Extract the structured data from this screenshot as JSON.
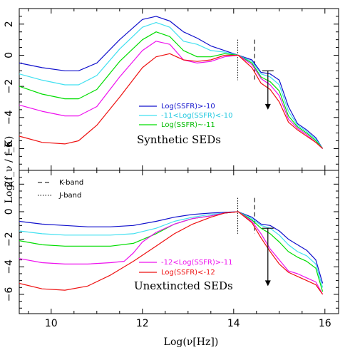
{
  "chart_data": {
    "type": "line",
    "xlabel": "Log(ν[Hz])",
    "ylabel": "Log(f_ν / f_K)",
    "xlim": [
      9.3,
      16.3
    ],
    "x_ticks": [
      "10",
      "12",
      "14",
      "16"
    ],
    "band_lines": {
      "J": 14.09,
      "K": 14.46
    },
    "band_legend": [
      {
        "name": "K-band",
        "style": "dashed"
      },
      {
        "name": "J-band",
        "style": "dotted"
      }
    ],
    "panels": [
      {
        "title": "Synthetic SEDs",
        "ylim": [
          -7.4,
          3.0
        ],
        "y_ticks": [
          "2",
          "0",
          "−2",
          "−4",
          "−6"
        ],
        "arrow": {
          "x": 14.75,
          "y_from": -1.0,
          "y_to": -3.5
        },
        "legend_labels": [
          "Log(SSFR)>-10",
          "-11<Log(SSFR)<-10",
          "Log(SSFR)~-11"
        ],
        "series": [
          {
            "name": "Log(SSFR)>-10",
            "color": "#1010cc",
            "x": [
              9.3,
              9.8,
              10.3,
              10.6,
              11.0,
              11.5,
              12.0,
              12.3,
              12.6,
              12.9,
              13.2,
              13.5,
              13.8,
              14.1,
              14.4,
              14.6,
              14.8,
              15.0,
              15.2,
              15.4,
              15.6,
              15.8,
              15.95
            ],
            "y": [
              -0.5,
              -0.8,
              -1.0,
              -1.0,
              -0.5,
              1.0,
              2.3,
              2.5,
              2.2,
              1.5,
              1.1,
              0.6,
              0.3,
              0.0,
              -0.3,
              -1.1,
              -1.2,
              -1.6,
              -3.3,
              -4.4,
              -4.8,
              -5.3,
              -6.0
            ]
          },
          {
            "name": "-11<Log(SSFR)<-10",
            "color": "#40e0f0",
            "x": [
              9.3,
              9.8,
              10.3,
              10.6,
              11.0,
              11.5,
              12.0,
              12.3,
              12.6,
              12.9,
              13.2,
              13.5,
              13.8,
              14.1,
              14.4,
              14.6,
              14.8,
              15.0,
              15.2,
              15.4,
              15.6,
              15.8,
              15.95
            ],
            "y": [
              -1.2,
              -1.6,
              -1.9,
              -1.9,
              -1.3,
              0.4,
              1.8,
              2.1,
              1.8,
              0.9,
              0.7,
              0.3,
              0.2,
              0.0,
              -0.4,
              -1.2,
              -1.4,
              -1.9,
              -3.6,
              -4.5,
              -4.9,
              -5.4,
              -6.0
            ]
          },
          {
            "name": "Log(SSFR)~-11",
            "color": "#00dd00",
            "x": [
              9.3,
              9.8,
              10.3,
              10.6,
              11.0,
              11.5,
              12.0,
              12.3,
              12.6,
              12.9,
              13.2,
              13.5,
              13.8,
              14.1,
              14.4,
              14.6,
              14.8,
              15.0,
              15.2,
              15.4,
              15.6,
              15.8,
              15.95
            ],
            "y": [
              -2.0,
              -2.5,
              -2.8,
              -2.8,
              -2.2,
              -0.4,
              1.0,
              1.5,
              1.2,
              0.3,
              -0.1,
              -0.1,
              0.1,
              0.0,
              -0.5,
              -1.4,
              -1.7,
              -2.3,
              -3.9,
              -4.6,
              -5.0,
              -5.5,
              -6.0
            ]
          },
          {
            "name": "",
            "color": "#ee10ee",
            "x": [
              9.3,
              9.8,
              10.3,
              10.6,
              11.0,
              11.5,
              12.0,
              12.3,
              12.6,
              12.9,
              13.2,
              13.5,
              13.8,
              14.1,
              14.4,
              14.6,
              14.8,
              15.0,
              15.2,
              15.4,
              15.6,
              15.8,
              15.95
            ],
            "y": [
              -3.2,
              -3.6,
              -3.9,
              -3.9,
              -3.3,
              -1.4,
              0.3,
              0.9,
              0.7,
              -0.3,
              -0.5,
              -0.4,
              -0.1,
              0.0,
              -0.6,
              -1.5,
              -1.9,
              -2.6,
              -4.1,
              -4.7,
              -5.1,
              -5.6,
              -6.0
            ]
          },
          {
            "name": "",
            "color": "#ee1010",
            "x": [
              9.3,
              9.8,
              10.3,
              10.6,
              11.0,
              11.5,
              12.0,
              12.3,
              12.6,
              12.9,
              13.2,
              13.5,
              13.8,
              14.1,
              14.4,
              14.6,
              14.8,
              15.0,
              15.2,
              15.4,
              15.6,
              15.8,
              15.95
            ],
            "y": [
              -5.2,
              -5.6,
              -5.7,
              -5.5,
              -4.5,
              -2.7,
              -0.8,
              -0.1,
              0.1,
              -0.3,
              -0.4,
              -0.3,
              0.0,
              0.0,
              -0.8,
              -1.8,
              -2.2,
              -3.0,
              -4.3,
              -4.8,
              -5.2,
              -5.6,
              -6.0
            ]
          }
        ]
      },
      {
        "title": "Unextincted SEDs",
        "ylim": [
          -7.4,
          3.0
        ],
        "y_ticks": [
          "2",
          "0",
          "−2",
          "−4",
          "−6"
        ],
        "arrow": {
          "x": 14.75,
          "y_from": -1.2,
          "y_to": -5.4
        },
        "legend_labels": [
          "-12<Log(SSFR)>-11",
          "Log(SSFR)<-12"
        ],
        "series": [
          {
            "name": "",
            "color": "#1010cc",
            "x": [
              9.3,
              9.8,
              10.3,
              10.8,
              11.3,
              11.8,
              12.3,
              12.7,
              13.1,
              13.5,
              13.8,
              14.1,
              14.4,
              14.6,
              14.8,
              15.0,
              15.2,
              15.4,
              15.6,
              15.8,
              15.95
            ],
            "y": [
              -0.7,
              -0.9,
              -1.0,
              -1.1,
              -1.1,
              -1.0,
              -0.7,
              -0.4,
              -0.2,
              -0.1,
              -0.05,
              0.0,
              -0.4,
              -0.9,
              -1.0,
              -1.4,
              -2.0,
              -2.4,
              -2.8,
              -3.5,
              -5.2
            ]
          },
          {
            "name": "",
            "color": "#40e0f0",
            "x": [
              9.3,
              9.8,
              10.3,
              10.8,
              11.3,
              11.8,
              12.3,
              12.7,
              13.1,
              13.5,
              13.8,
              14.1,
              14.4,
              14.6,
              14.8,
              15.0,
              15.2,
              15.4,
              15.6,
              15.8,
              15.95
            ],
            "y": [
              -1.4,
              -1.6,
              -1.7,
              -1.7,
              -1.7,
              -1.6,
              -1.2,
              -0.7,
              -0.4,
              -0.2,
              -0.1,
              0.0,
              -0.5,
              -1.0,
              -1.2,
              -1.7,
              -2.4,
              -2.9,
              -3.2,
              -3.8,
              -5.5
            ]
          },
          {
            "name": "",
            "color": "#00dd00",
            "x": [
              9.3,
              9.8,
              10.3,
              10.8,
              11.3,
              11.8,
              12.3,
              12.7,
              13.1,
              13.5,
              13.8,
              14.1,
              14.4,
              14.6,
              14.8,
              15.0,
              15.2,
              15.4,
              15.6,
              15.8,
              15.95
            ],
            "y": [
              -2.1,
              -2.4,
              -2.5,
              -2.5,
              -2.5,
              -2.3,
              -1.6,
              -0.9,
              -0.5,
              -0.3,
              -0.1,
              0.0,
              -0.6,
              -1.2,
              -1.6,
              -2.2,
              -2.9,
              -3.3,
              -3.6,
              -4.1,
              -5.8
            ]
          },
          {
            "name": "-12<Log(SSFR)>-11",
            "color": "#ee10ee",
            "x": [
              9.3,
              9.8,
              10.3,
              10.8,
              11.3,
              11.6,
              11.8,
              12.0,
              12.3,
              12.7,
              13.1,
              13.5,
              13.8,
              14.1,
              14.4,
              14.6,
              14.8,
              15.0,
              15.2,
              15.4,
              15.6,
              15.8,
              15.95
            ],
            "y": [
              -3.4,
              -3.7,
              -3.8,
              -3.8,
              -3.7,
              -3.6,
              -3.0,
              -2.2,
              -1.5,
              -0.9,
              -0.5,
              -0.3,
              -0.1,
              0.0,
              -0.7,
              -1.6,
              -2.7,
              -3.5,
              -4.3,
              -4.5,
              -4.8,
              -5.1,
              -6.0
            ]
          },
          {
            "name": "Log(SSFR)<-12",
            "color": "#ee1010",
            "x": [
              9.3,
              9.8,
              10.3,
              10.8,
              11.3,
              11.8,
              12.3,
              12.7,
              13.1,
              13.5,
              13.8,
              14.1,
              14.4,
              14.6,
              14.8,
              15.0,
              15.2,
              15.4,
              15.6,
              15.8,
              15.95
            ],
            "y": [
              -5.2,
              -5.6,
              -5.7,
              -5.4,
              -4.6,
              -3.6,
              -2.5,
              -1.6,
              -0.9,
              -0.4,
              -0.1,
              0.0,
              -0.8,
              -1.9,
              -2.9,
              -3.8,
              -4.4,
              -4.7,
              -5.0,
              -5.3,
              -6.0
            ]
          }
        ]
      }
    ]
  }
}
